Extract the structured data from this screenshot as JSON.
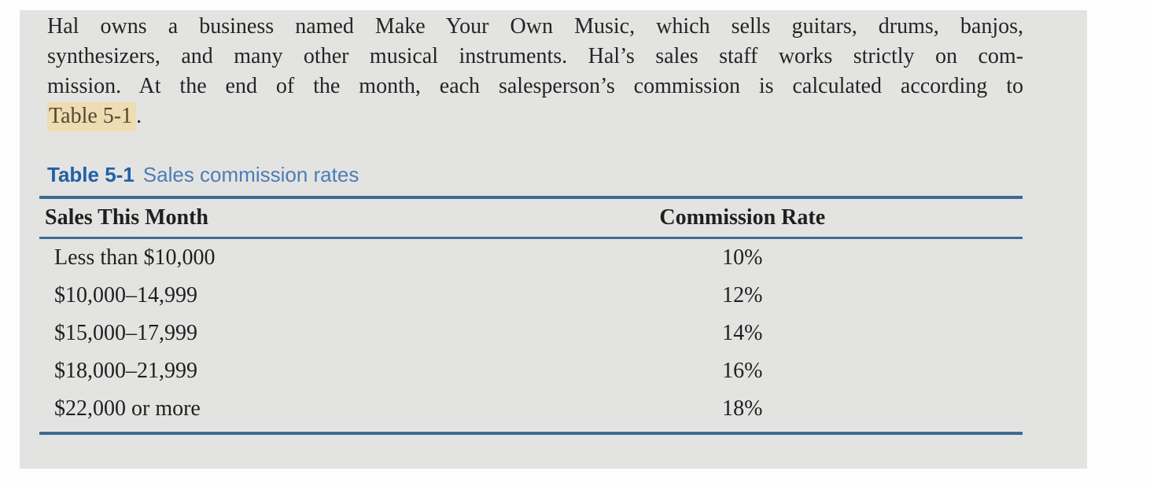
{
  "colors": {
    "page_background": "#fefefe",
    "panel_background": "#e3e4e2",
    "rule_blue": "#3d6b94",
    "caption_label_blue": "#2160a6",
    "caption_title_blue": "#4e7cb5",
    "body_text": "#242424",
    "highlight_background": "#eedcb2",
    "highlight_text": "#5a4630"
  },
  "paragraph": {
    "line1": "Hal owns a business named Make Your Own Music, which sells guitars, drums, banjos,",
    "line2": "synthesizers, and many other musical instruments. Hal’s sales staff works strictly on com-",
    "line3": "mission. At the end of the month, each salesperson’s commission is calculated according to",
    "table_ref": "Table 5-1",
    "after_ref": "."
  },
  "table": {
    "caption_label": "Table 5-1",
    "caption_title": "Sales commission rates",
    "columns": {
      "sales": "Sales This Month",
      "rate": "Commission Rate"
    },
    "rows": [
      {
        "sales": "Less than $10,000",
        "rate": "10%"
      },
      {
        "sales": "$10,000–14,999",
        "rate": "12%"
      },
      {
        "sales": "$15,000–17,999",
        "rate": "14%"
      },
      {
        "sales": "$18,000–21,999",
        "rate": "16%"
      },
      {
        "sales": "$22,000 or more",
        "rate": "18%"
      }
    ]
  }
}
